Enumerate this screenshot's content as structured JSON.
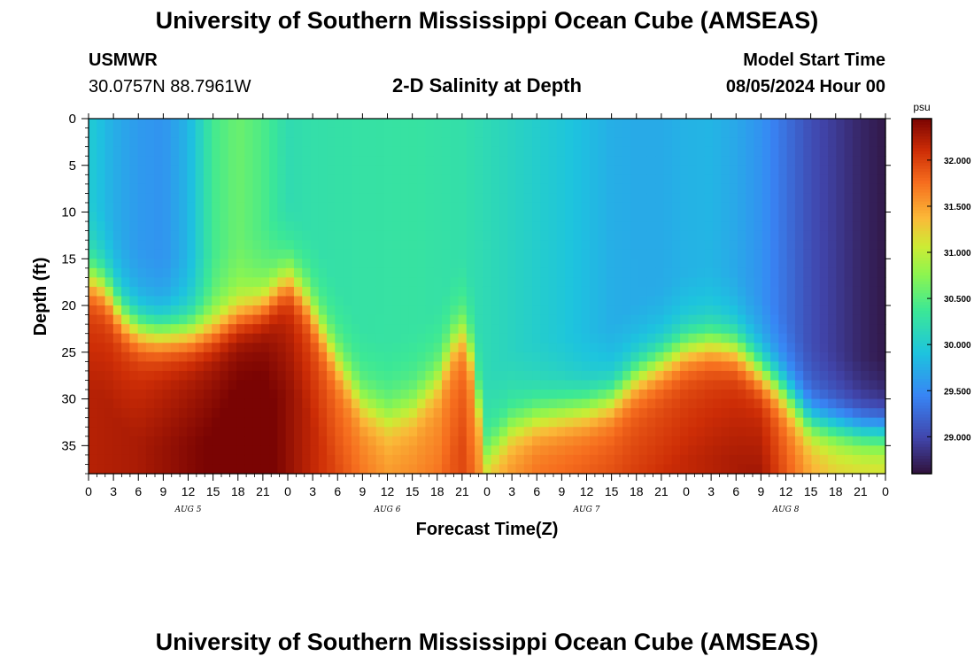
{
  "page_title": "University of Southern Mississippi Ocean Cube (AMSEAS)",
  "footer_title": "University of Southern Mississippi Ocean Cube (AMSEAS)",
  "station": {
    "id": "USMWR",
    "coords": "30.0757N  88.7961W"
  },
  "model": {
    "label": "Model Start Time",
    "start": "08/05/2024 Hour 00"
  },
  "chart_data": {
    "type": "heatmap",
    "title": "2-D Salinity at Depth",
    "xlabel": "Forecast Time(Z)",
    "ylabel": "Depth (ft)",
    "x_range_hours": [
      0,
      96
    ],
    "ylim": [
      0,
      38
    ],
    "x_ticks": [
      "0",
      "3",
      "6",
      "9",
      "12",
      "15",
      "18",
      "21",
      "0",
      "3",
      "6",
      "9",
      "12",
      "15",
      "18",
      "21",
      "0",
      "3",
      "6",
      "9",
      "12",
      "15",
      "18",
      "21",
      "0",
      "3",
      "6",
      "9",
      "12",
      "15",
      "18",
      "21",
      "0"
    ],
    "y_ticks": [
      "0",
      "5",
      "10",
      "15",
      "20",
      "25",
      "30",
      "35"
    ],
    "date_labels": [
      {
        "label": "AUG 5",
        "hour": 12
      },
      {
        "label": "AUG 6",
        "hour": 36
      },
      {
        "label": "AUG 7",
        "hour": 60
      },
      {
        "label": "AUG 8",
        "hour": 84
      }
    ],
    "colorbar": {
      "unit": "psu",
      "range": [
        28.6,
        32.45
      ],
      "ticks": [
        "29.000",
        "29.500",
        "30.000",
        "30.500",
        "31.000",
        "31.500",
        "32.000"
      ]
    },
    "surface_salinity": {
      "hours": [
        0,
        3,
        6,
        9,
        12,
        15,
        18,
        21,
        24,
        27,
        33,
        39,
        45,
        51,
        57,
        60,
        63,
        66,
        69,
        72,
        75,
        78,
        81,
        84,
        87,
        90,
        93,
        96
      ],
      "psu": [
        30.0,
        29.75,
        29.6,
        29.55,
        29.8,
        30.4,
        30.6,
        30.45,
        30.2,
        30.25,
        30.28,
        30.3,
        30.25,
        30.1,
        29.95,
        29.85,
        29.75,
        29.72,
        29.72,
        29.78,
        29.8,
        29.7,
        29.55,
        29.3,
        29.05,
        28.9,
        28.75,
        28.65
      ]
    },
    "halocline_depth_ft": {
      "hours": [
        0,
        2,
        4,
        6,
        8,
        12,
        15,
        18,
        21,
        24,
        26,
        30,
        33,
        36,
        39,
        42,
        44,
        45,
        46,
        48,
        51,
        54,
        57,
        60,
        63,
        66,
        69,
        72,
        75,
        78,
        81,
        83,
        84,
        85,
        87,
        90,
        93,
        96
      ],
      "ft": [
        17,
        18,
        21,
        22.5,
        23,
        23,
        22.5,
        21,
        20,
        17,
        19,
        26,
        30.5,
        32,
        31,
        28,
        24,
        23,
        25,
        36,
        33,
        32,
        31.5,
        31,
        30,
        27.5,
        26,
        24.5,
        24,
        24.5,
        27,
        28.5,
        29.5,
        30.5,
        32.5,
        33,
        33.5,
        33.5
      ]
    },
    "bottom_salinity_psu": {
      "hours": [
        0,
        6,
        12,
        18,
        21,
        24,
        30,
        36,
        42,
        45,
        48,
        54,
        60,
        66,
        72,
        78,
        81,
        84,
        87,
        90,
        96
      ],
      "psu": [
        31.95,
        32.0,
        32.15,
        32.3,
        32.3,
        32.1,
        31.7,
        31.4,
        31.5,
        31.7,
        31.3,
        31.6,
        31.7,
        31.8,
        31.9,
        32.0,
        32.05,
        31.7,
        31.35,
        31.15,
        31.1
      ]
    }
  }
}
